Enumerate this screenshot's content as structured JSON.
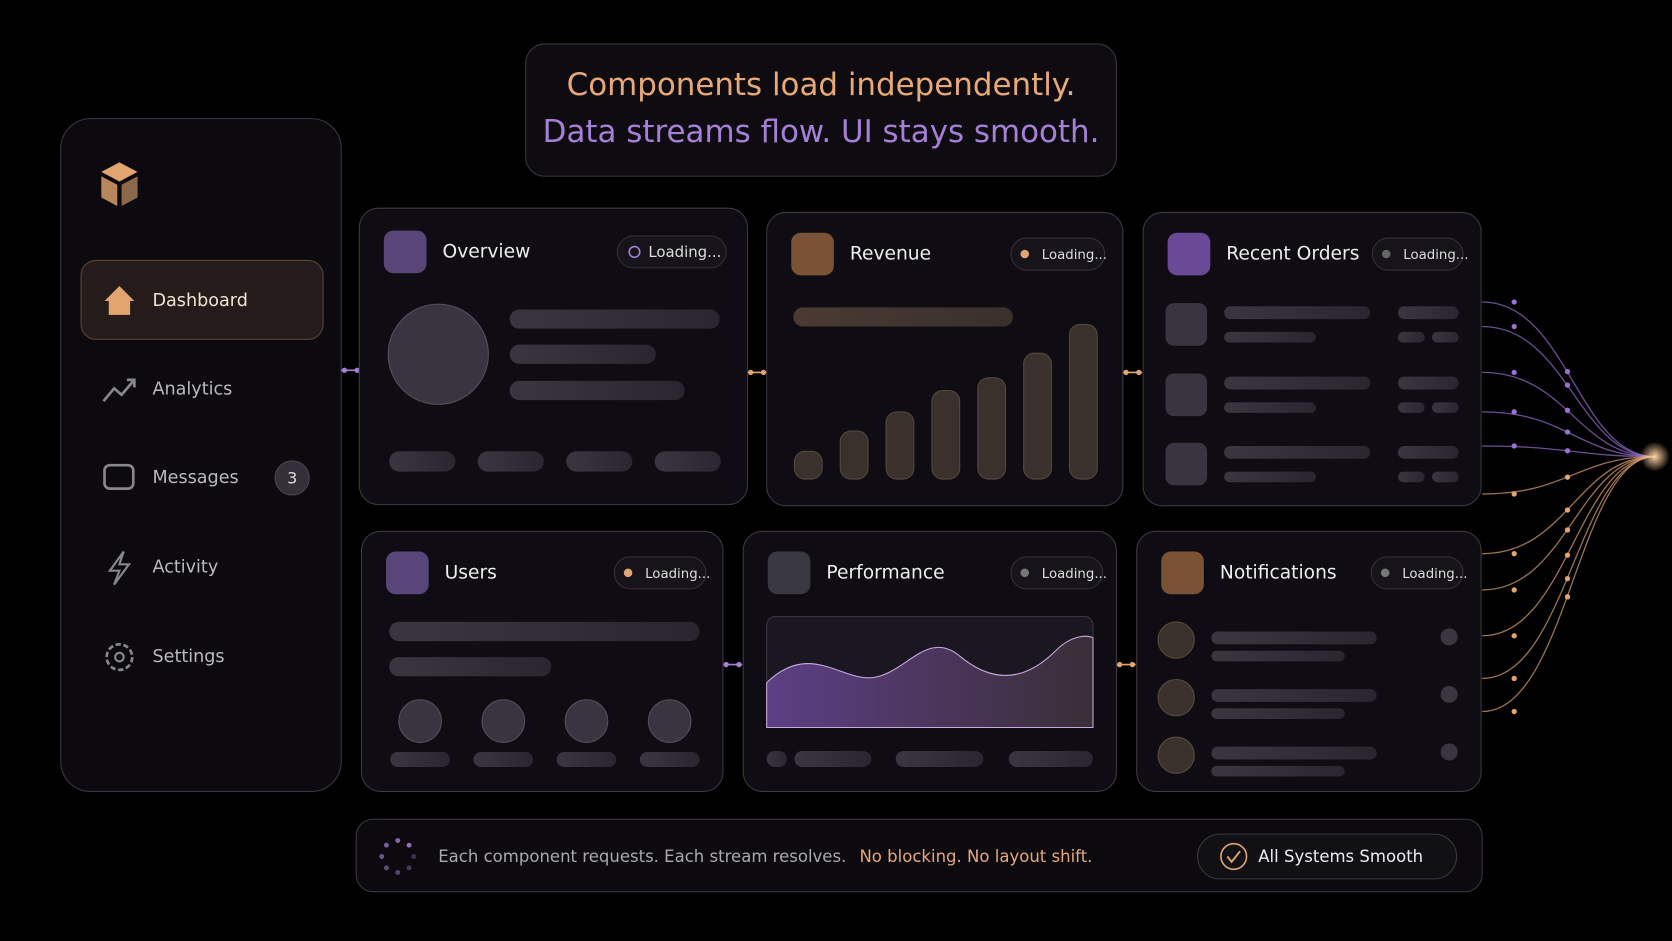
{
  "header": {
    "line1": "Components load independently.",
    "line2": "Data streams flow. UI stays smooth."
  },
  "sidebar": {
    "nav": [
      {
        "label": "Dashboard"
      },
      {
        "label": "Analytics"
      },
      {
        "label": "Messages",
        "badge": 3
      },
      {
        "label": "Activity"
      },
      {
        "label": "Settings"
      }
    ]
  },
  "cards": [
    {
      "title": "Overview",
      "status": "Loading..."
    },
    {
      "title": "Revenue",
      "status": "Loading..."
    },
    {
      "title": "Recent Orders",
      "status": "Loading..."
    },
    {
      "title": "Users",
      "status": "Loading..."
    },
    {
      "title": "Performance",
      "status": "Loading..."
    },
    {
      "title": "Notifications",
      "status": "Loading..."
    }
  ],
  "footer": {
    "text": "Each component requests. Each stream resolves.",
    "highlight": "No blocking. No layout shift.",
    "status": "All Systems Smooth"
  }
}
